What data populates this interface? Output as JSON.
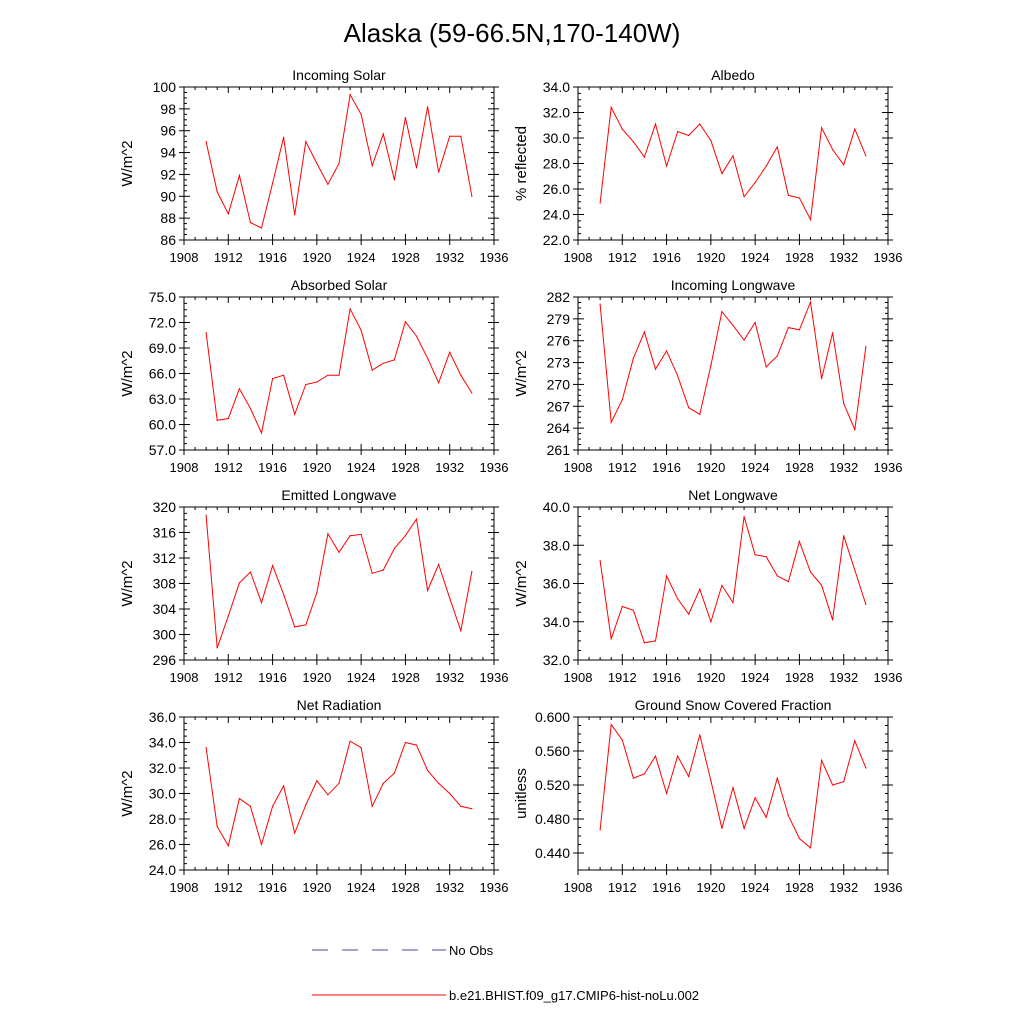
{
  "title": "Alaska (59-66.5N,170-140W)",
  "colors": {
    "model": "#ff0000",
    "obs": "#4a4aa0",
    "axis": "#000000"
  },
  "legend": [
    {
      "label": "No Obs",
      "style": "dashed",
      "color": "#4a4aa0"
    },
    {
      "label": "b.e21.BHIST.f09_g17.CMIP6-hist-noLu.002",
      "style": "solid",
      "color": "#ff0000"
    }
  ],
  "chart_data": [
    {
      "type": "line",
      "title": "Incoming Solar",
      "ylabel": "W/m^2",
      "xlabel": "",
      "xlim": [
        1908,
        1936
      ],
      "xticks": [
        1908,
        1912,
        1916,
        1920,
        1924,
        1928,
        1932,
        1936
      ],
      "ylim": [
        86,
        100
      ],
      "yticks": [
        "86",
        "88",
        "90",
        "92",
        "94",
        "96",
        "98",
        "100"
      ],
      "x": [
        1910,
        1911,
        1912,
        1913,
        1914,
        1915,
        1916,
        1917,
        1918,
        1919,
        1920,
        1921,
        1922,
        1923,
        1924,
        1925,
        1926,
        1927,
        1928,
        1929,
        1930,
        1931,
        1932,
        1933,
        1934
      ],
      "series": [
        {
          "values": [
            95.0,
            90.4,
            88.4,
            91.9,
            87.6,
            87.1,
            91.2,
            95.4,
            88.3,
            95.0,
            93.0,
            91.1,
            93.0,
            99.3,
            97.5,
            92.8,
            95.7,
            91.5,
            97.2,
            92.6,
            98.2,
            92.2,
            95.5,
            95.5,
            90.0
          ]
        }
      ]
    },
    {
      "type": "line",
      "title": "Albedo",
      "ylabel": "% reflected",
      "xlabel": "",
      "xlim": [
        1908,
        1936
      ],
      "xticks": [
        1908,
        1912,
        1916,
        1920,
        1924,
        1928,
        1932,
        1936
      ],
      "ylim": [
        22,
        34
      ],
      "yticks": [
        "22.0",
        "24.0",
        "26.0",
        "28.0",
        "30.0",
        "32.0",
        "34.0"
      ],
      "x": [
        1910,
        1911,
        1912,
        1913,
        1914,
        1915,
        1916,
        1917,
        1918,
        1919,
        1920,
        1921,
        1922,
        1923,
        1924,
        1925,
        1926,
        1927,
        1928,
        1929,
        1930,
        1931,
        1932,
        1933,
        1934
      ],
      "series": [
        {
          "values": [
            24.9,
            32.4,
            30.7,
            29.7,
            28.5,
            31.1,
            27.8,
            30.5,
            30.2,
            31.1,
            29.8,
            27.2,
            28.6,
            25.4,
            26.5,
            27.8,
            29.3,
            25.5,
            25.3,
            23.6,
            30.8,
            29.1,
            27.9,
            30.7,
            28.6
          ]
        }
      ]
    },
    {
      "type": "line",
      "title": "Absorbed Solar",
      "ylabel": "W/m^2",
      "xlabel": "",
      "xlim": [
        1908,
        1936
      ],
      "xticks": [
        1908,
        1912,
        1916,
        1920,
        1924,
        1928,
        1932,
        1936
      ],
      "ylim": [
        57,
        75
      ],
      "yticks": [
        "57.0",
        "60.0",
        "63.0",
        "66.0",
        "69.0",
        "72.0",
        "75.0"
      ],
      "x": [
        1910,
        1911,
        1912,
        1913,
        1914,
        1915,
        1916,
        1917,
        1918,
        1919,
        1920,
        1921,
        1922,
        1923,
        1924,
        1925,
        1926,
        1927,
        1928,
        1929,
        1930,
        1931,
        1932,
        1933,
        1934
      ],
      "series": [
        {
          "values": [
            70.8,
            60.5,
            60.7,
            64.2,
            61.9,
            59.0,
            65.4,
            65.8,
            61.2,
            64.7,
            65.0,
            65.8,
            65.8,
            73.6,
            71.1,
            66.4,
            67.2,
            67.6,
            72.1,
            70.4,
            67.8,
            64.9,
            68.5,
            65.8,
            63.7
          ]
        }
      ]
    },
    {
      "type": "line",
      "title": "Incoming Longwave",
      "ylabel": "W/m^2",
      "xlabel": "",
      "xlim": [
        1908,
        1936
      ],
      "xticks": [
        1908,
        1912,
        1916,
        1920,
        1924,
        1928,
        1932,
        1936
      ],
      "ylim": [
        261,
        282
      ],
      "yticks": [
        "261",
        "264",
        "267",
        "270",
        "273",
        "276",
        "279",
        "282"
      ],
      "x": [
        1910,
        1911,
        1912,
        1913,
        1914,
        1915,
        1916,
        1917,
        1918,
        1919,
        1920,
        1921,
        1922,
        1923,
        1924,
        1925,
        1926,
        1927,
        1928,
        1929,
        1930,
        1931,
        1932,
        1933,
        1934
      ],
      "series": [
        {
          "values": [
            281.0,
            264.8,
            267.9,
            273.6,
            277.2,
            272.1,
            274.6,
            271.2,
            266.8,
            265.9,
            272.6,
            280.0,
            278.1,
            276.1,
            278.5,
            272.4,
            273.9,
            277.8,
            277.5,
            281.3,
            270.8,
            277.1,
            267.4,
            263.8,
            275.2
          ]
        }
      ]
    },
    {
      "type": "line",
      "title": "Emitted Longwave",
      "ylabel": "W/m^2",
      "xlabel": "",
      "xlim": [
        1908,
        1936
      ],
      "xticks": [
        1908,
        1912,
        1916,
        1920,
        1924,
        1928,
        1932,
        1936
      ],
      "ylim": [
        296,
        320
      ],
      "yticks": [
        "296",
        "300",
        "304",
        "308",
        "312",
        "316",
        "320"
      ],
      "x": [
        1910,
        1911,
        1912,
        1913,
        1914,
        1915,
        1916,
        1917,
        1918,
        1919,
        1920,
        1921,
        1922,
        1923,
        1924,
        1925,
        1926,
        1927,
        1928,
        1929,
        1930,
        1931,
        1932,
        1933,
        1934
      ],
      "series": [
        {
          "values": [
            318.7,
            297.9,
            302.9,
            308.1,
            309.8,
            305.0,
            310.8,
            306.3,
            301.2,
            301.5,
            306.6,
            315.8,
            312.9,
            315.5,
            315.7,
            309.6,
            310.1,
            313.5,
            315.5,
            318.1,
            306.9,
            311.0,
            305.7,
            300.6,
            309.9
          ]
        }
      ]
    },
    {
      "type": "line",
      "title": "Net Longwave",
      "ylabel": "W/m^2",
      "xlabel": "",
      "xlim": [
        1908,
        1936
      ],
      "xticks": [
        1908,
        1912,
        1916,
        1920,
        1924,
        1928,
        1932,
        1936
      ],
      "ylim": [
        32,
        40
      ],
      "yticks": [
        "32.0",
        "34.0",
        "36.0",
        "38.0",
        "40.0"
      ],
      "x": [
        1910,
        1911,
        1912,
        1913,
        1914,
        1915,
        1916,
        1917,
        1918,
        1919,
        1920,
        1921,
        1922,
        1923,
        1924,
        1925,
        1926,
        1927,
        1928,
        1929,
        1930,
        1931,
        1932,
        1933,
        1934
      ],
      "series": [
        {
          "values": [
            37.2,
            33.1,
            34.8,
            34.6,
            32.9,
            33.0,
            36.4,
            35.2,
            34.4,
            35.7,
            34.0,
            35.9,
            35.0,
            39.5,
            37.5,
            37.4,
            36.4,
            36.1,
            38.2,
            36.6,
            35.9,
            34.1,
            38.5,
            36.7,
            34.9
          ]
        }
      ]
    },
    {
      "type": "line",
      "title": "Net Radiation",
      "ylabel": "W/m^2",
      "xlabel": "",
      "xlim": [
        1908,
        1936
      ],
      "xticks": [
        1908,
        1912,
        1916,
        1920,
        1924,
        1928,
        1932,
        1936
      ],
      "ylim": [
        24,
        36
      ],
      "yticks": [
        "24.0",
        "26.0",
        "28.0",
        "30.0",
        "32.0",
        "34.0",
        "36.0"
      ],
      "x": [
        1910,
        1911,
        1912,
        1913,
        1914,
        1915,
        1916,
        1917,
        1918,
        1919,
        1920,
        1921,
        1922,
        1923,
        1924,
        1925,
        1926,
        1927,
        1928,
        1929,
        1930,
        1931,
        1932,
        1933,
        1934
      ],
      "series": [
        {
          "values": [
            33.6,
            27.4,
            25.9,
            29.6,
            29.0,
            26.0,
            29.0,
            30.6,
            26.9,
            29.1,
            31.0,
            29.9,
            30.8,
            34.1,
            33.6,
            29.0,
            30.8,
            31.6,
            34.0,
            33.8,
            31.8,
            30.8,
            30.0,
            29.0,
            28.8
          ]
        }
      ]
    },
    {
      "type": "line",
      "title": "Ground Snow Covered Fraction",
      "ylabel": "unitless",
      "xlabel": "",
      "xlim": [
        1908,
        1936
      ],
      "xticks": [
        1908,
        1912,
        1916,
        1920,
        1924,
        1928,
        1932,
        1936
      ],
      "ylim": [
        0.42,
        0.6
      ],
      "yticks": [
        "0.440",
        "0.480",
        "0.520",
        "0.560",
        "0.600"
      ],
      "x": [
        1910,
        1911,
        1912,
        1913,
        1914,
        1915,
        1916,
        1917,
        1918,
        1919,
        1920,
        1921,
        1922,
        1923,
        1924,
        1925,
        1926,
        1927,
        1928,
        1929,
        1930,
        1931,
        1932,
        1933,
        1934
      ],
      "series": [
        {
          "values": [
            0.467,
            0.591,
            0.573,
            0.528,
            0.533,
            0.554,
            0.51,
            0.554,
            0.53,
            0.579,
            0.525,
            0.469,
            0.517,
            0.469,
            0.505,
            0.482,
            0.528,
            0.484,
            0.457,
            0.446,
            0.549,
            0.52,
            0.524,
            0.572,
            0.54
          ]
        }
      ]
    }
  ]
}
